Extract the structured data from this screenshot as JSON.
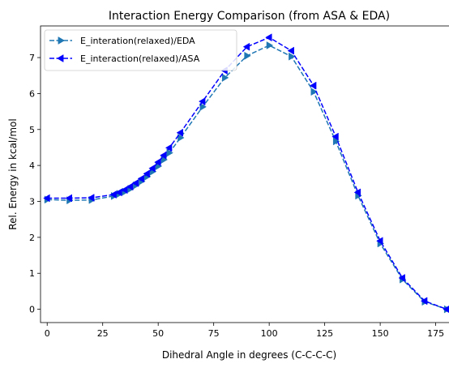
{
  "chart_data": {
    "type": "line",
    "title": "Interaction Energy Comparison (from ASA & EDA)",
    "xlabel": "Dihedral Angle in degrees (C-C-C-C)",
    "ylabel": "Rel. Energy in kcal/mol",
    "xlim": [
      -3,
      185
    ],
    "ylim": [
      -0.37,
      7.88
    ],
    "xticks": [
      0,
      25,
      50,
      75,
      100,
      125,
      150,
      175
    ],
    "yticks": [
      0,
      1,
      2,
      3,
      4,
      5,
      6,
      7
    ],
    "grid": false,
    "legend_position": "top-left",
    "series": [
      {
        "name": "E_interation(relaxed)/EDA",
        "color": "#1f77b4",
        "linestyle": "dashed",
        "marker": "triangle-right",
        "x": [
          0,
          10,
          20,
          30,
          32.5,
          35,
          37.5,
          40,
          42.5,
          45,
          47.5,
          50,
          52.5,
          55,
          60,
          70,
          80,
          90,
          100,
          110,
          120,
          130,
          140,
          150,
          160,
          170,
          180
        ],
        "y": [
          3.05,
          3.03,
          3.04,
          3.15,
          3.21,
          3.27,
          3.35,
          3.45,
          3.56,
          3.69,
          3.83,
          3.98,
          4.16,
          4.35,
          4.77,
          5.63,
          6.44,
          7.05,
          7.34,
          7.03,
          6.05,
          4.67,
          3.16,
          1.83,
          0.83,
          0.21,
          0.0
        ]
      },
      {
        "name": "E_interaction(relaxed)/ASA",
        "color": "#0000ff",
        "linestyle": "dashed",
        "marker": "triangle-left",
        "x": [
          0,
          10,
          20,
          30,
          32.5,
          35,
          37.5,
          40,
          42.5,
          45,
          47.5,
          50,
          52.5,
          55,
          60,
          70,
          80,
          90,
          100,
          110,
          120,
          130,
          140,
          150,
          160,
          170,
          180
        ],
        "y": [
          3.09,
          3.09,
          3.1,
          3.19,
          3.25,
          3.32,
          3.41,
          3.51,
          3.63,
          3.77,
          3.92,
          4.09,
          4.28,
          4.49,
          4.91,
          5.78,
          6.64,
          7.3,
          7.56,
          7.19,
          6.22,
          4.8,
          3.25,
          1.9,
          0.87,
          0.23,
          0.0
        ]
      }
    ]
  }
}
